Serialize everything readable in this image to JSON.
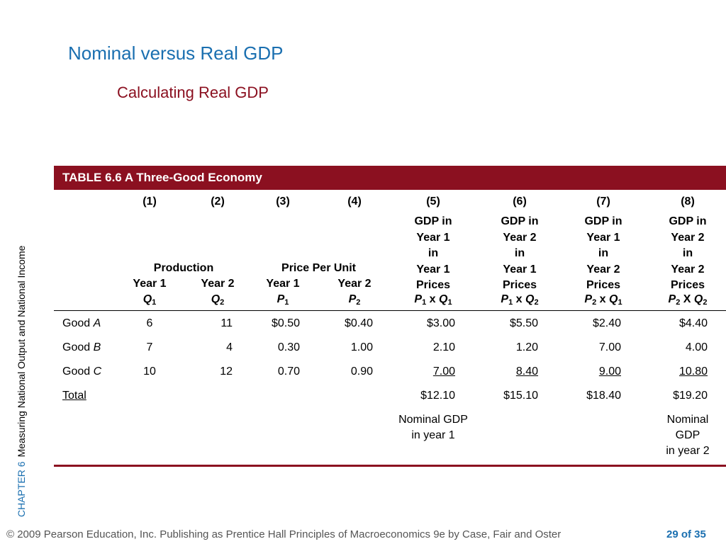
{
  "slide": {
    "title": "Nominal versus Real GDP",
    "subtitle": "Calculating Real GDP",
    "side_chapter": "CHAPTER 6",
    "side_text": "Measuring National Output and National Income",
    "footer_left": "© 2009 Pearson Education, Inc. Publishing as Prentice Hall   Principles of Macroeconomics 9e by Case, Fair and Oster",
    "page_indicator": "29 of 35"
  },
  "table": {
    "caption": "TABLE 6.6  A Three-Good Economy",
    "col_numbers": [
      "(1)",
      "(2)",
      "(3)",
      "(4)",
      "(5)",
      "(6)",
      "(7)",
      "(8)"
    ],
    "group_labels": {
      "production": "Production",
      "price_per_unit": "Price Per Unit"
    },
    "year_labels": [
      "Year 1",
      "Year 2",
      "Year 1",
      "Year 2"
    ],
    "symbols": [
      {
        "var": "Q",
        "sub": "1"
      },
      {
        "var": "Q",
        "sub": "2"
      },
      {
        "var": "P",
        "sub": "1"
      },
      {
        "var": "P",
        "sub": "2"
      }
    ],
    "gdp_headers": [
      {
        "lines": [
          "GDP in",
          "Year 1",
          "in",
          "Year 1",
          "Prices"
        ],
        "formula": {
          "p": "P",
          "ps": "1",
          "op": " x ",
          "q": "Q",
          "qs": "1"
        }
      },
      {
        "lines": [
          "GDP in",
          "Year 2",
          "in",
          "Year 1",
          "Prices"
        ],
        "formula": {
          "p": "P",
          "ps": "1",
          "op": " x ",
          "q": "Q",
          "qs": "2"
        }
      },
      {
        "lines": [
          "GDP in",
          "Year 1",
          "in",
          "Year 2",
          "Prices"
        ],
        "formula": {
          "p": "P",
          "ps": "2",
          "op": " x ",
          "q": "Q",
          "qs": "1"
        }
      },
      {
        "lines": [
          "GDP in",
          "Year 2",
          "in",
          "Year 2",
          "Prices"
        ],
        "formula": {
          "p": "P",
          "ps": "2",
          "op": " X ",
          "q": "Q",
          "qs": "2"
        }
      }
    ],
    "rows": [
      {
        "good_prefix": "Good ",
        "good_letter": "A",
        "values": [
          "6",
          "11",
          "$0.50",
          "$0.40",
          "$3.00",
          "$5.50",
          "$2.40",
          "$4.40"
        ],
        "underline": false
      },
      {
        "good_prefix": "Good ",
        "good_letter": "B",
        "values": [
          "7",
          "4",
          "0.30",
          "1.00",
          "2.10",
          "1.20",
          "7.00",
          "4.00"
        ],
        "underline": false
      },
      {
        "good_prefix": "Good ",
        "good_letter": "C",
        "values": [
          "10",
          "12",
          "0.70",
          "0.90",
          "7.00",
          "8.40",
          "9.00",
          "10.80"
        ],
        "underline": true
      }
    ],
    "total": {
      "label": "Total",
      "values": [
        "$12.10",
        "$15.10",
        "$18.40",
        "$19.20"
      ]
    },
    "notes": {
      "col5": [
        "Nominal GDP",
        "in year 1"
      ],
      "col8": [
        "Nominal",
        "GDP",
        "in year 2"
      ]
    }
  }
}
